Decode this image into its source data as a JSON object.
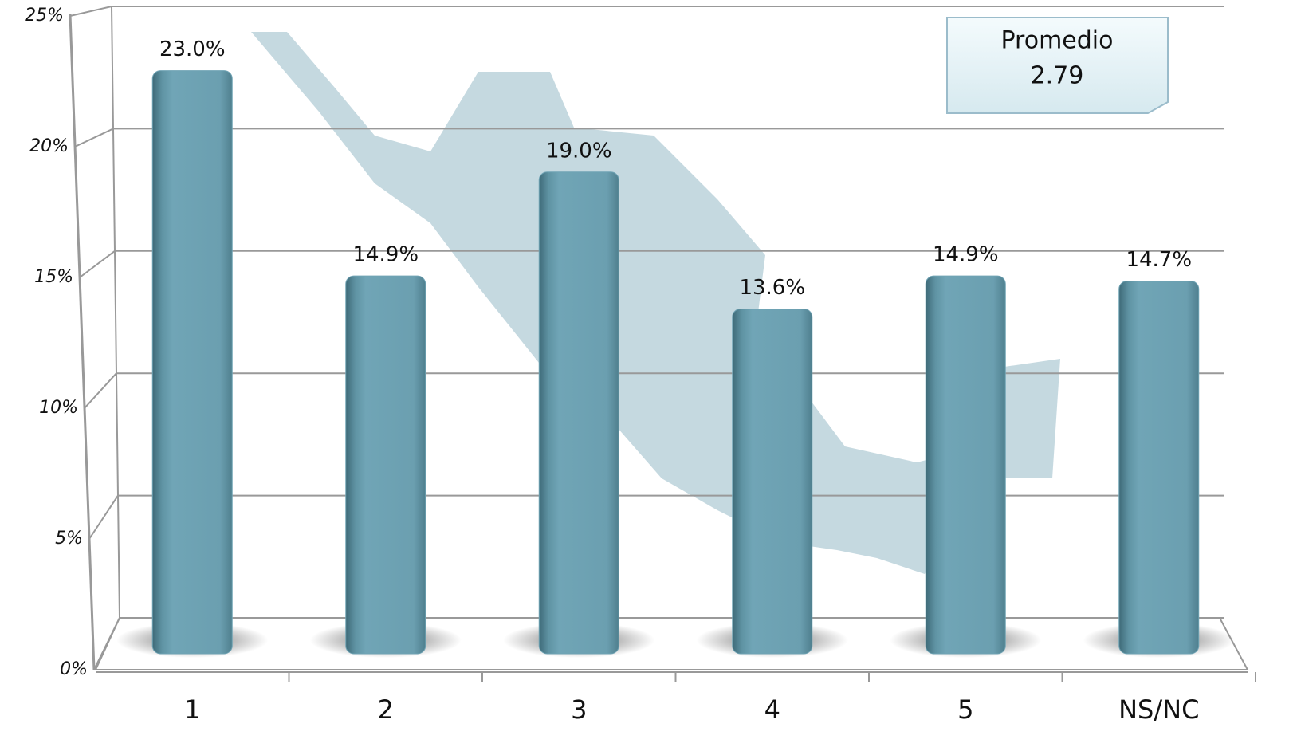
{
  "chart_data": {
    "type": "bar",
    "categories": [
      "1",
      "2",
      "3",
      "4",
      "5",
      "NS/NC"
    ],
    "values": [
      23.0,
      14.9,
      19.0,
      13.6,
      14.9,
      14.7
    ],
    "value_labels": [
      "23.0%",
      "14.9%",
      "19.0%",
      "13.6%",
      "14.9%",
      "14.7%"
    ],
    "color": "#6fa3b4",
    "ylim": [
      0,
      25
    ],
    "yticks": [
      {
        "value": 0,
        "label": "0%"
      },
      {
        "value": 5,
        "label": "5%"
      },
      {
        "value": 10,
        "label": "10%"
      },
      {
        "value": 15,
        "label": "15%"
      },
      {
        "value": 20,
        "label": "20%"
      },
      {
        "value": 25,
        "label": "25%"
      }
    ],
    "grid": true,
    "annotation": {
      "label": "Promedio",
      "text": "2.79"
    }
  }
}
